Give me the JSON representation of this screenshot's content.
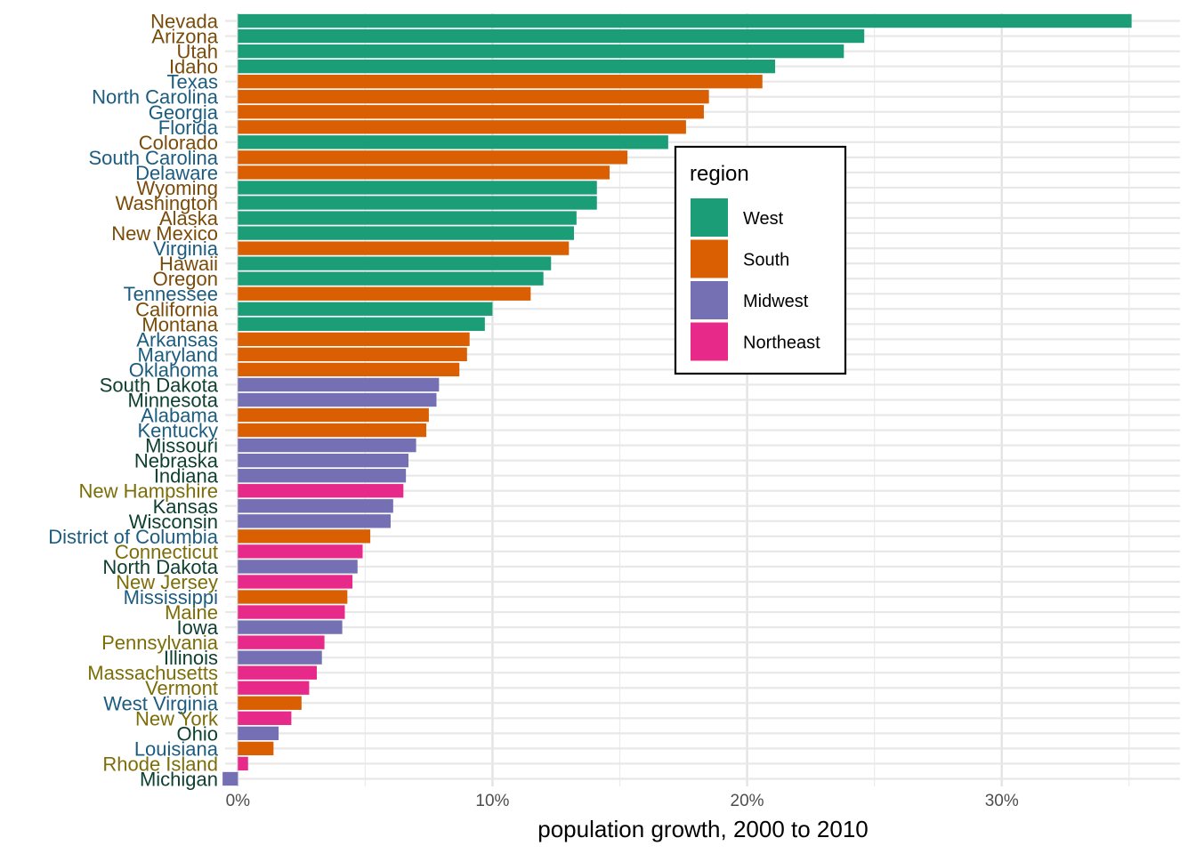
{
  "chart_data": {
    "type": "bar",
    "orientation": "horizontal",
    "xlabel": "population growth, 2000 to 2010",
    "ylabel": "",
    "xlim": [
      -0.5,
      37
    ],
    "x_ticks": [
      {
        "value": 0,
        "label": "0%"
      },
      {
        "value": 10,
        "label": "10%"
      },
      {
        "value": 20,
        "label": "20%"
      },
      {
        "value": 30,
        "label": "30%"
      }
    ],
    "grid": true,
    "legend": {
      "title": "region",
      "placement": "inside-right",
      "entries": [
        {
          "label": "West",
          "color": "#1b9e77"
        },
        {
          "label": "South",
          "color": "#d95f02"
        },
        {
          "label": "Midwest",
          "color": "#7570b3"
        },
        {
          "label": "Northeast",
          "color": "#e7298a"
        }
      ]
    },
    "region_colors": {
      "West": "#1b9e77",
      "South": "#d95f02",
      "Midwest": "#7570b3",
      "Northeast": "#e7298a"
    },
    "label_colors": {
      "West": "#7a4b09",
      "South": "#1b5c7f",
      "Midwest": "#0d4030",
      "Northeast": "#7c6d08"
    },
    "bars": [
      {
        "state": "Nevada",
        "region": "West",
        "value": 35.1
      },
      {
        "state": "Arizona",
        "region": "West",
        "value": 24.6
      },
      {
        "state": "Utah",
        "region": "West",
        "value": 23.8
      },
      {
        "state": "Idaho",
        "region": "West",
        "value": 21.1
      },
      {
        "state": "Texas",
        "region": "South",
        "value": 20.6
      },
      {
        "state": "North Carolina",
        "region": "South",
        "value": 18.5
      },
      {
        "state": "Georgia",
        "region": "South",
        "value": 18.3
      },
      {
        "state": "Florida",
        "region": "South",
        "value": 17.6
      },
      {
        "state": "Colorado",
        "region": "West",
        "value": 16.9
      },
      {
        "state": "South Carolina",
        "region": "South",
        "value": 15.3
      },
      {
        "state": "Delaware",
        "region": "South",
        "value": 14.6
      },
      {
        "state": "Wyoming",
        "region": "West",
        "value": 14.1
      },
      {
        "state": "Washington",
        "region": "West",
        "value": 14.1
      },
      {
        "state": "Alaska",
        "region": "West",
        "value": 13.3
      },
      {
        "state": "New Mexico",
        "region": "West",
        "value": 13.2
      },
      {
        "state": "Virginia",
        "region": "South",
        "value": 13.0
      },
      {
        "state": "Hawaii",
        "region": "West",
        "value": 12.3
      },
      {
        "state": "Oregon",
        "region": "West",
        "value": 12.0
      },
      {
        "state": "Tennessee",
        "region": "South",
        "value": 11.5
      },
      {
        "state": "California",
        "region": "West",
        "value": 10.0
      },
      {
        "state": "Montana",
        "region": "West",
        "value": 9.7
      },
      {
        "state": "Arkansas",
        "region": "South",
        "value": 9.1
      },
      {
        "state": "Maryland",
        "region": "South",
        "value": 9.0
      },
      {
        "state": "Oklahoma",
        "region": "South",
        "value": 8.7
      },
      {
        "state": "South Dakota",
        "region": "Midwest",
        "value": 7.9
      },
      {
        "state": "Minnesota",
        "region": "Midwest",
        "value": 7.8
      },
      {
        "state": "Alabama",
        "region": "South",
        "value": 7.5
      },
      {
        "state": "Kentucky",
        "region": "South",
        "value": 7.4
      },
      {
        "state": "Missouri",
        "region": "Midwest",
        "value": 7.0
      },
      {
        "state": "Nebraska",
        "region": "Midwest",
        "value": 6.7
      },
      {
        "state": "Indiana",
        "region": "Midwest",
        "value": 6.6
      },
      {
        "state": "New Hampshire",
        "region": "Northeast",
        "value": 6.5
      },
      {
        "state": "Kansas",
        "region": "Midwest",
        "value": 6.1
      },
      {
        "state": "Wisconsin",
        "region": "Midwest",
        "value": 6.0
      },
      {
        "state": "District of Columbia",
        "region": "South",
        "value": 5.2
      },
      {
        "state": "Connecticut",
        "region": "Northeast",
        "value": 4.9
      },
      {
        "state": "North Dakota",
        "region": "Midwest",
        "value": 4.7
      },
      {
        "state": "New Jersey",
        "region": "Northeast",
        "value": 4.5
      },
      {
        "state": "Mississippi",
        "region": "South",
        "value": 4.3
      },
      {
        "state": "Maine",
        "region": "Northeast",
        "value": 4.2
      },
      {
        "state": "Iowa",
        "region": "Midwest",
        "value": 4.1
      },
      {
        "state": "Pennsylvania",
        "region": "Northeast",
        "value": 3.4
      },
      {
        "state": "Illinois",
        "region": "Midwest",
        "value": 3.3
      },
      {
        "state": "Massachusetts",
        "region": "Northeast",
        "value": 3.1
      },
      {
        "state": "Vermont",
        "region": "Northeast",
        "value": 2.8
      },
      {
        "state": "West Virginia",
        "region": "South",
        "value": 2.5
      },
      {
        "state": "New York",
        "region": "Northeast",
        "value": 2.1
      },
      {
        "state": "Ohio",
        "region": "Midwest",
        "value": 1.6
      },
      {
        "state": "Louisiana",
        "region": "South",
        "value": 1.4
      },
      {
        "state": "Rhode Island",
        "region": "Northeast",
        "value": 0.4
      },
      {
        "state": "Michigan",
        "region": "Midwest",
        "value": -0.6
      }
    ]
  }
}
